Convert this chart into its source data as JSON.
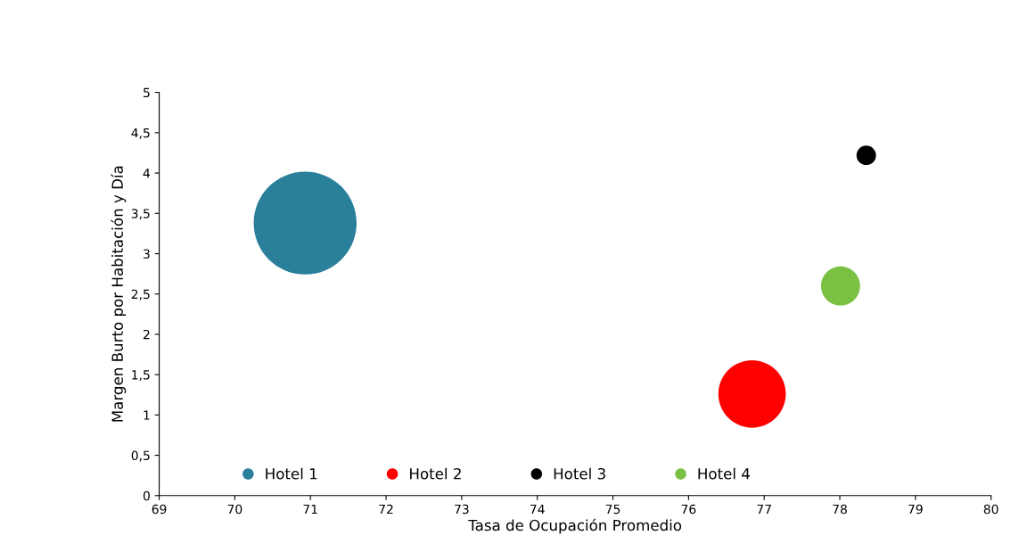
{
  "chart_data": {
    "type": "bubble",
    "xlabel": "Tasa de Ocupación Promedio",
    "ylabel": "Margen Burto por Habitación y Día",
    "xlim": [
      69,
      80
    ],
    "xticks": [
      69,
      70,
      71,
      72,
      73,
      74,
      75,
      76,
      77,
      78,
      79,
      80
    ],
    "ylim": [
      0,
      5
    ],
    "yticks": [
      0,
      {
        "value": 0.5,
        "label": "0,5"
      },
      1,
      {
        "value": 1.5,
        "label": "1,5"
      },
      2,
      {
        "value": 2.5,
        "label": "2,5"
      },
      3,
      {
        "value": 3.5,
        "label": "3,5"
      },
      4,
      {
        "value": 4.5,
        "label": "4,5"
      },
      5
    ],
    "grid": false,
    "legend": "bottom",
    "series": [
      {
        "name": "Hotel 1",
        "color": "#2a7f9a",
        "x": [
          70.93
        ],
        "values": [
          3.38
        ],
        "sizes": [
          1
        ]
      },
      {
        "name": "Hotel 2",
        "color": "#ff0000",
        "x": [
          76.84
        ],
        "values": [
          1.26
        ],
        "sizes": [
          0.43
        ]
      },
      {
        "name": "Hotel 3",
        "color": "#000000",
        "x": [
          78.35
        ],
        "values": [
          4.22
        ],
        "sizes": [
          0.036
        ]
      },
      {
        "name": "Hotel 4",
        "color": "#7ac143",
        "x": [
          78.01
        ],
        "values": [
          2.6
        ],
        "sizes": [
          0.144
        ]
      }
    ]
  }
}
